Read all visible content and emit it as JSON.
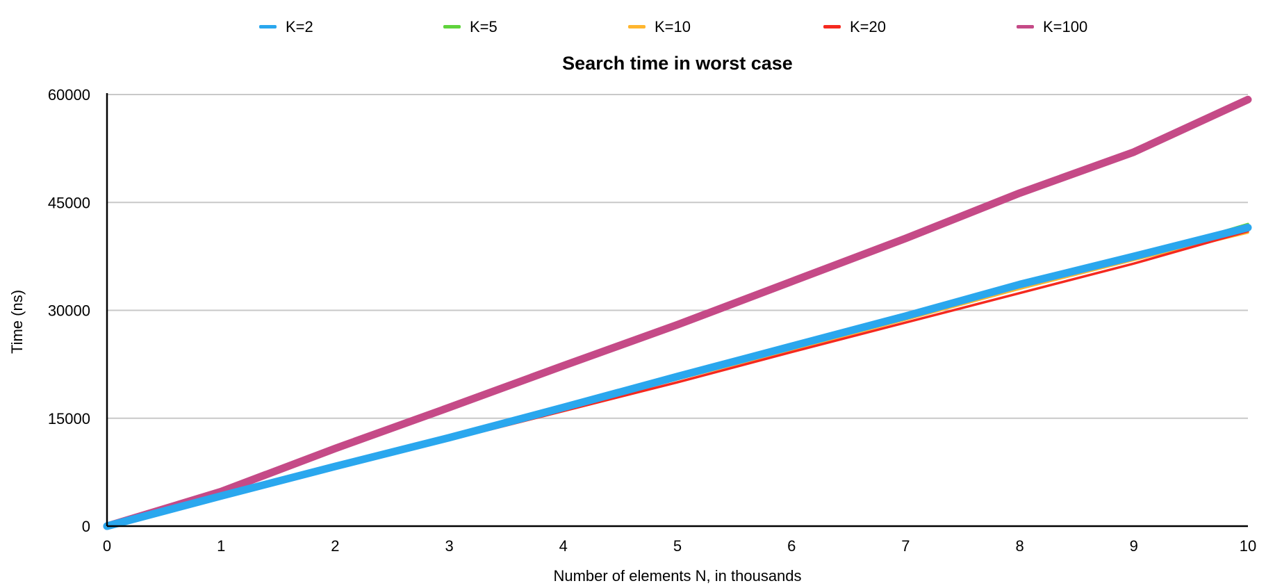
{
  "chart_data": {
    "type": "line",
    "title": "Search time in worst case",
    "xlabel": "Number of elements N, in thousands",
    "ylabel": "Time (ns)",
    "x": [
      0,
      1,
      2,
      3,
      4,
      5,
      6,
      7,
      8,
      9,
      10
    ],
    "xticks": [
      "0",
      "1",
      "2",
      "3",
      "4",
      "5",
      "6",
      "7",
      "8",
      "9",
      "10"
    ],
    "xlim": [
      0,
      10
    ],
    "yticks": [
      "0",
      "15000",
      "30000",
      "45000",
      "60000"
    ],
    "ylim": [
      0,
      60000
    ],
    "grid": "horizontal",
    "legend_position": "top",
    "series": [
      {
        "name": "K=2",
        "color": "#2aa7ee",
        "values": [
          0,
          4200,
          8300,
          12300,
          16500,
          20800,
          25000,
          29200,
          33600,
          37500,
          41500
        ]
      },
      {
        "name": "K=5",
        "color": "#5fd33c",
        "values": [
          0,
          4200,
          8300,
          12500,
          16800,
          21000,
          25000,
          29000,
          33000,
          37300,
          42000
        ]
      },
      {
        "name": "K=10",
        "color": "#ffb62f",
        "values": [
          0,
          4100,
          8000,
          12000,
          16200,
          20400,
          24500,
          28700,
          33000,
          37000,
          40800
        ]
      },
      {
        "name": "K=20",
        "color": "#f5291f",
        "values": [
          0,
          4000,
          8000,
          12000,
          16000,
          20000,
          24200,
          28300,
          32400,
          36500,
          41000
        ]
      },
      {
        "name": "K=100",
        "color": "#c54a87",
        "values": [
          0,
          4800,
          10800,
          16500,
          22300,
          28000,
          34000,
          40000,
          46300,
          52000,
          59300
        ]
      }
    ]
  }
}
